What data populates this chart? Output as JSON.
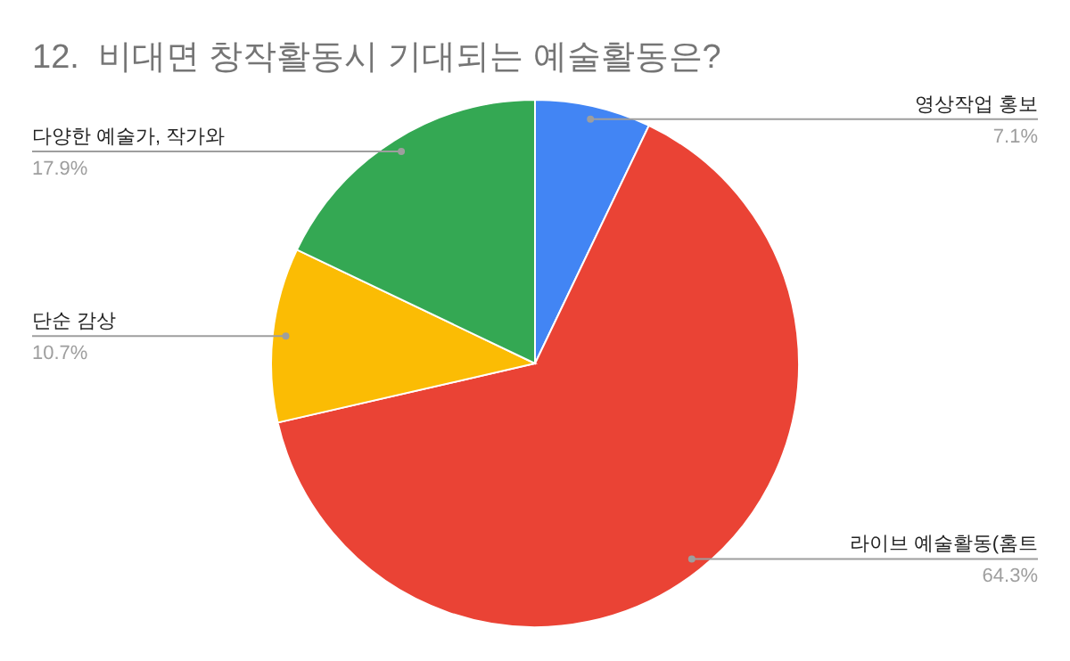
{
  "chart_data": {
    "type": "pie",
    "title": "12.  비대면 창작활동시 기대되는 예술활동은?",
    "categories": [
      "영상작업 홍보",
      "라이브 예술활동(홈트",
      "단순 감상",
      "다양한 예술가, 작가와"
    ],
    "values": [
      7.1,
      64.3,
      10.7,
      17.9
    ],
    "value_labels": [
      "7.1%",
      "64.3%",
      "10.7%",
      "17.9%"
    ],
    "colors": [
      "#4285f4",
      "#ea4335",
      "#fbbc04",
      "#34a853"
    ]
  }
}
